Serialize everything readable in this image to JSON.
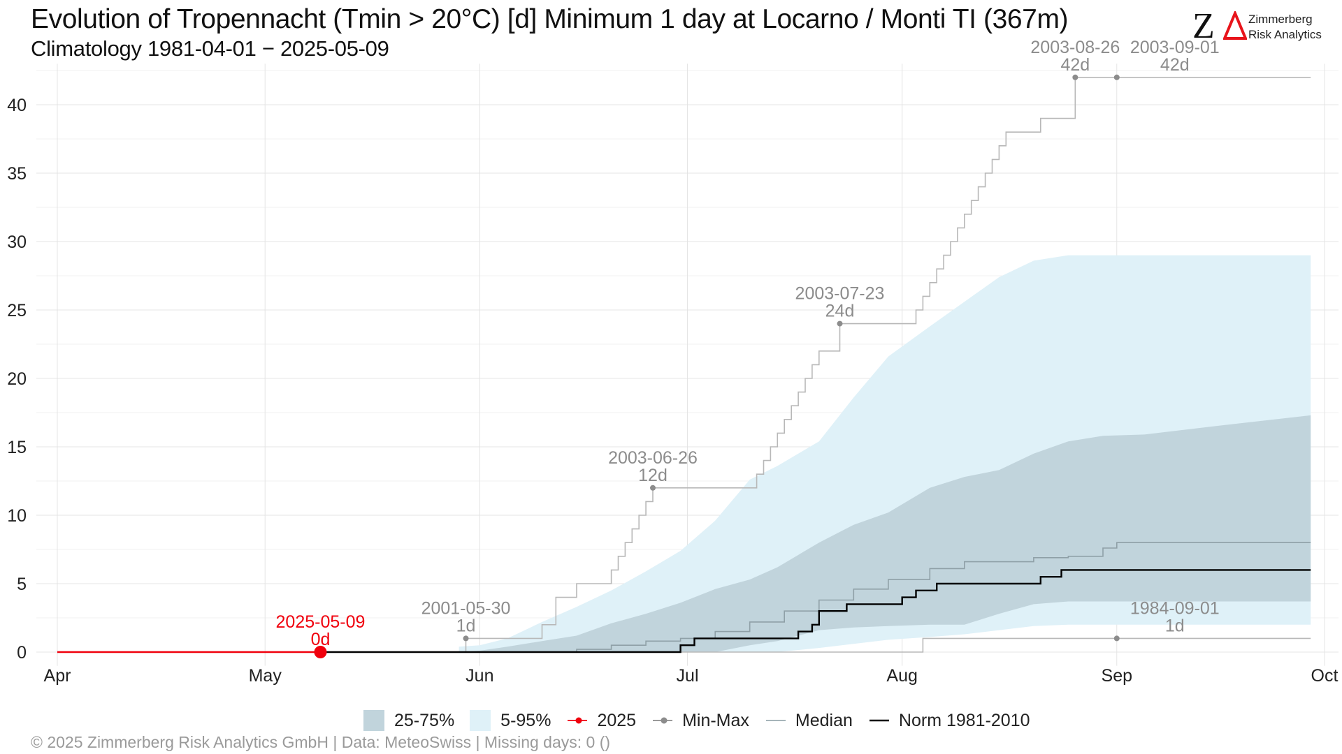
{
  "header": {
    "title": "Evolution of Tropennacht (Tmin > 20°C) [d] Minimum 1 day at Locarno / Monti  TI (367m)",
    "subtitle": "Climatology 1981-04-01 − 2025-05-09"
  },
  "logo": {
    "mark": "ZΔ",
    "line1": "Zimmerberg",
    "line2": "Risk Analytics",
    "accent": "#e8141b"
  },
  "footer": {
    "text": "©  2025 Zimmerberg Risk Analytics GmbH | Data: MeteoSwiss | Missing days: 0 ()"
  },
  "legend": [
    {
      "label": "25-75%",
      "kind": "box",
      "color": "#c1d4dc"
    },
    {
      "label": "5-95%",
      "kind": "box",
      "color": "#dff1f8"
    },
    {
      "label": "2025",
      "kind": "point-line",
      "color": "#f0000d"
    },
    {
      "label": "Min-Max",
      "kind": "point-line",
      "color": "#8c8c8c"
    },
    {
      "label": "Median",
      "kind": "line",
      "color": "#9aa9b0"
    },
    {
      "label": "Norm 1981-2010",
      "kind": "line",
      "color": "#000000"
    }
  ],
  "colors": {
    "band_5_95": "#dff1f8",
    "band_25_75": "#c1d4dc",
    "median": "#8fa0a7",
    "norm": "#000000",
    "current": "#f0000d",
    "minmax": "#b8b8b8",
    "annotation": "#8c8c8c",
    "grid": "#e4e4e4"
  },
  "chart_data": {
    "type": "area",
    "x_axis": {
      "type": "date",
      "range": [
        "2025-04-01",
        "2025-10-01"
      ],
      "ticks": [
        {
          "date": "2025-04-01",
          "label": "Apr"
        },
        {
          "date": "2025-05-01",
          "label": "May"
        },
        {
          "date": "2025-06-01",
          "label": "Jun"
        },
        {
          "date": "2025-07-01",
          "label": "Jul"
        },
        {
          "date": "2025-08-01",
          "label": "Aug"
        },
        {
          "date": "2025-09-01",
          "label": "Sep"
        },
        {
          "date": "2025-10-01",
          "label": "Oct"
        }
      ]
    },
    "y_axis": {
      "ylim": [
        -1,
        43
      ],
      "ticks": [
        0,
        5,
        10,
        15,
        20,
        25,
        30,
        35,
        40
      ]
    },
    "grid": true,
    "x": [
      "2025-05-29",
      "2025-06-01",
      "2025-06-05",
      "2025-06-10",
      "2025-06-15",
      "2025-06-20",
      "2025-06-25",
      "2025-06-30",
      "2025-07-05",
      "2025-07-10",
      "2025-07-14",
      "2025-07-20",
      "2025-07-25",
      "2025-07-30",
      "2025-08-05",
      "2025-08-10",
      "2025-08-15",
      "2025-08-20",
      "2025-08-25",
      "2025-08-30",
      "2025-09-05",
      "2025-09-15",
      "2025-09-29"
    ],
    "series": [
      {
        "name": "5-95%",
        "kind": "band",
        "low": [
          0,
          0,
          0,
          0,
          0,
          0,
          0,
          0,
          0,
          0,
          0,
          0.3,
          0.6,
          0.9,
          1.1,
          1.3,
          1.6,
          1.9,
          2.0,
          2.0,
          2.0,
          2.0,
          2.0
        ],
        "high": [
          0.4,
          0.5,
          1.0,
          2.2,
          3.3,
          4.5,
          5.9,
          7.4,
          9.6,
          12.6,
          13.6,
          15.4,
          18.6,
          21.6,
          23.8,
          25.6,
          27.4,
          28.6,
          29.0,
          29.0,
          29.0,
          29.0,
          29.0
        ]
      },
      {
        "name": "25-75%",
        "kind": "band",
        "low": [
          0,
          0,
          0,
          0,
          0,
          0,
          0,
          0,
          0,
          0.5,
          0.8,
          1.6,
          1.8,
          1.9,
          2.0,
          2.0,
          2.8,
          3.5,
          3.7,
          3.7,
          3.7,
          3.7,
          3.7
        ],
        "high": [
          0,
          0.1,
          0.4,
          0.8,
          1.2,
          2.1,
          2.8,
          3.6,
          4.6,
          5.3,
          6.2,
          8.0,
          9.3,
          10.2,
          12.0,
          12.8,
          13.3,
          14.5,
          15.4,
          15.8,
          15.9,
          16.5,
          17.3
        ]
      },
      {
        "name": "Median",
        "kind": "step",
        "points": [
          [
            "2025-06-08",
            0
          ],
          [
            "2025-06-15",
            0.2
          ],
          [
            "2025-06-20",
            0.5
          ],
          [
            "2025-06-25",
            0.8
          ],
          [
            "2025-06-30",
            1.0
          ],
          [
            "2025-07-05",
            1.5
          ],
          [
            "2025-07-10",
            2.2
          ],
          [
            "2025-07-15",
            3.0
          ],
          [
            "2025-07-20",
            3.8
          ],
          [
            "2025-07-25",
            4.6
          ],
          [
            "2025-07-30",
            5.3
          ],
          [
            "2025-08-05",
            6.1
          ],
          [
            "2025-08-10",
            6.6
          ],
          [
            "2025-08-20",
            6.9
          ],
          [
            "2025-08-25",
            7.0
          ],
          [
            "2025-08-30",
            7.6
          ],
          [
            "2025-09-01",
            8.0
          ],
          [
            "2025-09-29",
            8.0
          ]
        ]
      },
      {
        "name": "Norm 1981-2010",
        "kind": "step",
        "points": [
          [
            "2025-05-09",
            0
          ],
          [
            "2025-06-30",
            0
          ],
          [
            "2025-06-30",
            0.5
          ],
          [
            "2025-07-02",
            0.5
          ],
          [
            "2025-07-02",
            1.0
          ],
          [
            "2025-07-17",
            1.0
          ],
          [
            "2025-07-17",
            1.5
          ],
          [
            "2025-07-19",
            1.5
          ],
          [
            "2025-07-19",
            2.0
          ],
          [
            "2025-07-20",
            2.0
          ],
          [
            "2025-07-20",
            3.0
          ],
          [
            "2025-07-24",
            3.0
          ],
          [
            "2025-07-24",
            3.5
          ],
          [
            "2025-08-01",
            3.5
          ],
          [
            "2025-08-01",
            4.0
          ],
          [
            "2025-08-03",
            4.0
          ],
          [
            "2025-08-03",
            4.5
          ],
          [
            "2025-08-06",
            4.5
          ],
          [
            "2025-08-06",
            5.0
          ],
          [
            "2025-08-21",
            5.0
          ],
          [
            "2025-08-21",
            5.5
          ],
          [
            "2025-08-24",
            5.5
          ],
          [
            "2025-08-24",
            6.0
          ],
          [
            "2025-09-29",
            6.0
          ]
        ]
      },
      {
        "name": "Max (2003)",
        "kind": "step",
        "points": [
          [
            "2025-05-29",
            0
          ],
          [
            "2025-05-30",
            0
          ],
          [
            "2025-05-30",
            1
          ],
          [
            "2025-06-06",
            1
          ],
          [
            "2025-06-10",
            2
          ],
          [
            "2025-06-12",
            4
          ],
          [
            "2025-06-15",
            5
          ],
          [
            "2025-06-19",
            5
          ],
          [
            "2025-06-20",
            6
          ],
          [
            "2025-06-21",
            7
          ],
          [
            "2025-06-22",
            8
          ],
          [
            "2025-06-23",
            9
          ],
          [
            "2025-06-24",
            10
          ],
          [
            "2025-06-25",
            11
          ],
          [
            "2025-06-26",
            12
          ],
          [
            "2025-07-10",
            12
          ],
          [
            "2025-07-11",
            13
          ],
          [
            "2025-07-12",
            14
          ],
          [
            "2025-07-13",
            15
          ],
          [
            "2025-07-14",
            16
          ],
          [
            "2025-07-15",
            17
          ],
          [
            "2025-07-16",
            18
          ],
          [
            "2025-07-17",
            19
          ],
          [
            "2025-07-18",
            20
          ],
          [
            "2025-07-19",
            21
          ],
          [
            "2025-07-20",
            22
          ],
          [
            "2025-07-23",
            24
          ],
          [
            "2025-08-02",
            24
          ],
          [
            "2025-08-03",
            25
          ],
          [
            "2025-08-04",
            26
          ],
          [
            "2025-08-05",
            27
          ],
          [
            "2025-08-06",
            28
          ],
          [
            "2025-08-07",
            29
          ],
          [
            "2025-08-08",
            30
          ],
          [
            "2025-08-09",
            31
          ],
          [
            "2025-08-10",
            32
          ],
          [
            "2025-08-11",
            33
          ],
          [
            "2025-08-12",
            34
          ],
          [
            "2025-08-13",
            35
          ],
          [
            "2025-08-14",
            36
          ],
          [
            "2025-08-15",
            37
          ],
          [
            "2025-08-16",
            38
          ],
          [
            "2025-08-20",
            38
          ],
          [
            "2025-08-21",
            39
          ],
          [
            "2025-08-25",
            39
          ],
          [
            "2025-08-26",
            42
          ],
          [
            "2025-09-29",
            42
          ]
        ]
      },
      {
        "name": "Min (1984)",
        "kind": "step",
        "points": [
          [
            "2025-05-29",
            0
          ],
          [
            "2025-08-04",
            0
          ],
          [
            "2025-08-04",
            1
          ],
          [
            "2025-09-29",
            1
          ]
        ]
      },
      {
        "name": "2025",
        "kind": "line",
        "points": [
          [
            "2025-04-01",
            0
          ],
          [
            "2025-05-09",
            0
          ]
        ]
      }
    ],
    "annotations": [
      {
        "date": "2025-05-09",
        "value": 0,
        "label": "2025-05-09",
        "sublabel": "0d",
        "color": "#f0000d",
        "big": true
      },
      {
        "date": "2025-05-30",
        "value": 1,
        "label": "2001-05-30",
        "sublabel": "1d",
        "color": "#8c8c8c"
      },
      {
        "date": "2025-06-26",
        "value": 12,
        "label": "2003-06-26",
        "sublabel": "12d",
        "color": "#8c8c8c"
      },
      {
        "date": "2025-07-23",
        "value": 24,
        "label": "2003-07-23",
        "sublabel": "24d",
        "color": "#8c8c8c"
      },
      {
        "date": "2025-08-26",
        "value": 42,
        "label": "2003-08-26",
        "sublabel": "42d",
        "color": "#8c8c8c"
      },
      {
        "date": "2025-09-01",
        "value": 42,
        "label": "2003-09-01",
        "sublabel": "42d",
        "color": "#8c8c8c"
      },
      {
        "date": "2025-09-01",
        "value": 1,
        "label": "1984-09-01",
        "sublabel": "1d",
        "color": "#8c8c8c"
      }
    ]
  }
}
